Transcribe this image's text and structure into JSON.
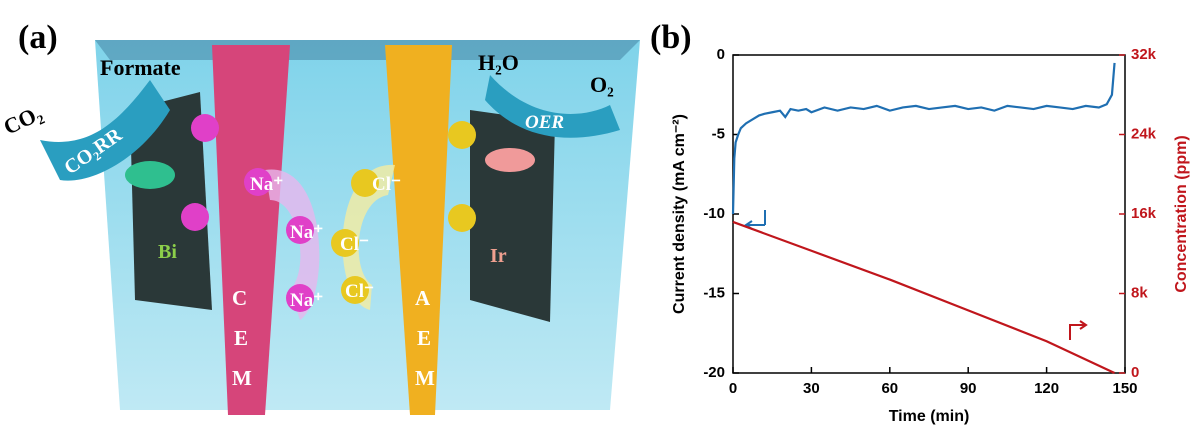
{
  "panel_a": {
    "label": "(a)",
    "texts": {
      "formate": "Formate",
      "co2": "CO₂",
      "co2rr": "CO₂RR",
      "h2o": "H₂O",
      "o2": "O₂",
      "oer": "OER",
      "na": [
        "Na⁺",
        "Na⁺",
        "Na⁺"
      ],
      "cl": [
        "Cl⁻",
        "Cl⁻",
        "Cl⁻"
      ],
      "bi": "Bi",
      "ir": "Ir",
      "cem": [
        "C",
        "E",
        "M"
      ],
      "aem": [
        "A",
        "E",
        "M"
      ]
    }
  },
  "panel_b_label": "(b)",
  "chart_data": {
    "type": "line",
    "xlabel": "Time (min)",
    "ylabel": "Current density (mA cm⁻²)",
    "y2label": "Concentration (ppm)",
    "xlim": [
      0,
      150
    ],
    "xticks": [
      0,
      30,
      60,
      90,
      120,
      150
    ],
    "ylim": [
      -20,
      0
    ],
    "yticks": [
      -20,
      -15,
      -10,
      -5,
      0
    ],
    "y2lim": [
      0,
      32000
    ],
    "y2ticks": [
      {
        "value": 0,
        "label": "0"
      },
      {
        "value": 8000,
        "label": "8k"
      },
      {
        "value": 16000,
        "label": "16k"
      },
      {
        "value": 24000,
        "label": "24k"
      },
      {
        "value": 32000,
        "label": "32k"
      }
    ],
    "series": [
      {
        "color": "#1f6fb2",
        "axis": "y",
        "x": [
          0,
          0.5,
          1,
          2,
          3,
          5,
          8,
          10,
          12,
          15,
          18,
          20,
          22,
          25,
          28,
          30,
          35,
          40,
          45,
          50,
          55,
          60,
          65,
          70,
          75,
          80,
          85,
          90,
          95,
          100,
          105,
          110,
          115,
          120,
          125,
          130,
          135,
          140,
          143,
          145,
          146
        ],
        "values": [
          -10,
          -6.5,
          -5.5,
          -5,
          -4.6,
          -4.3,
          -4,
          -3.8,
          -3.7,
          -3.6,
          -3.5,
          -3.9,
          -3.4,
          -3.5,
          -3.4,
          -3.6,
          -3.3,
          -3.5,
          -3.3,
          -3.4,
          -3.2,
          -3.5,
          -3.3,
          -3.2,
          -3.4,
          -3.3,
          -3.2,
          -3.4,
          -3.3,
          -3.5,
          -3.2,
          -3.3,
          -3.4,
          -3.2,
          -3.3,
          -3.4,
          -3.2,
          -3.3,
          -3.1,
          -2.5,
          -0.5
        ]
      },
      {
        "color": "#c0161c",
        "axis": "y2",
        "x": [
          0,
          30,
          60,
          90,
          120,
          146
        ],
        "values": [
          15200,
          12300,
          9400,
          6300,
          3200,
          0
        ]
      }
    ]
  }
}
